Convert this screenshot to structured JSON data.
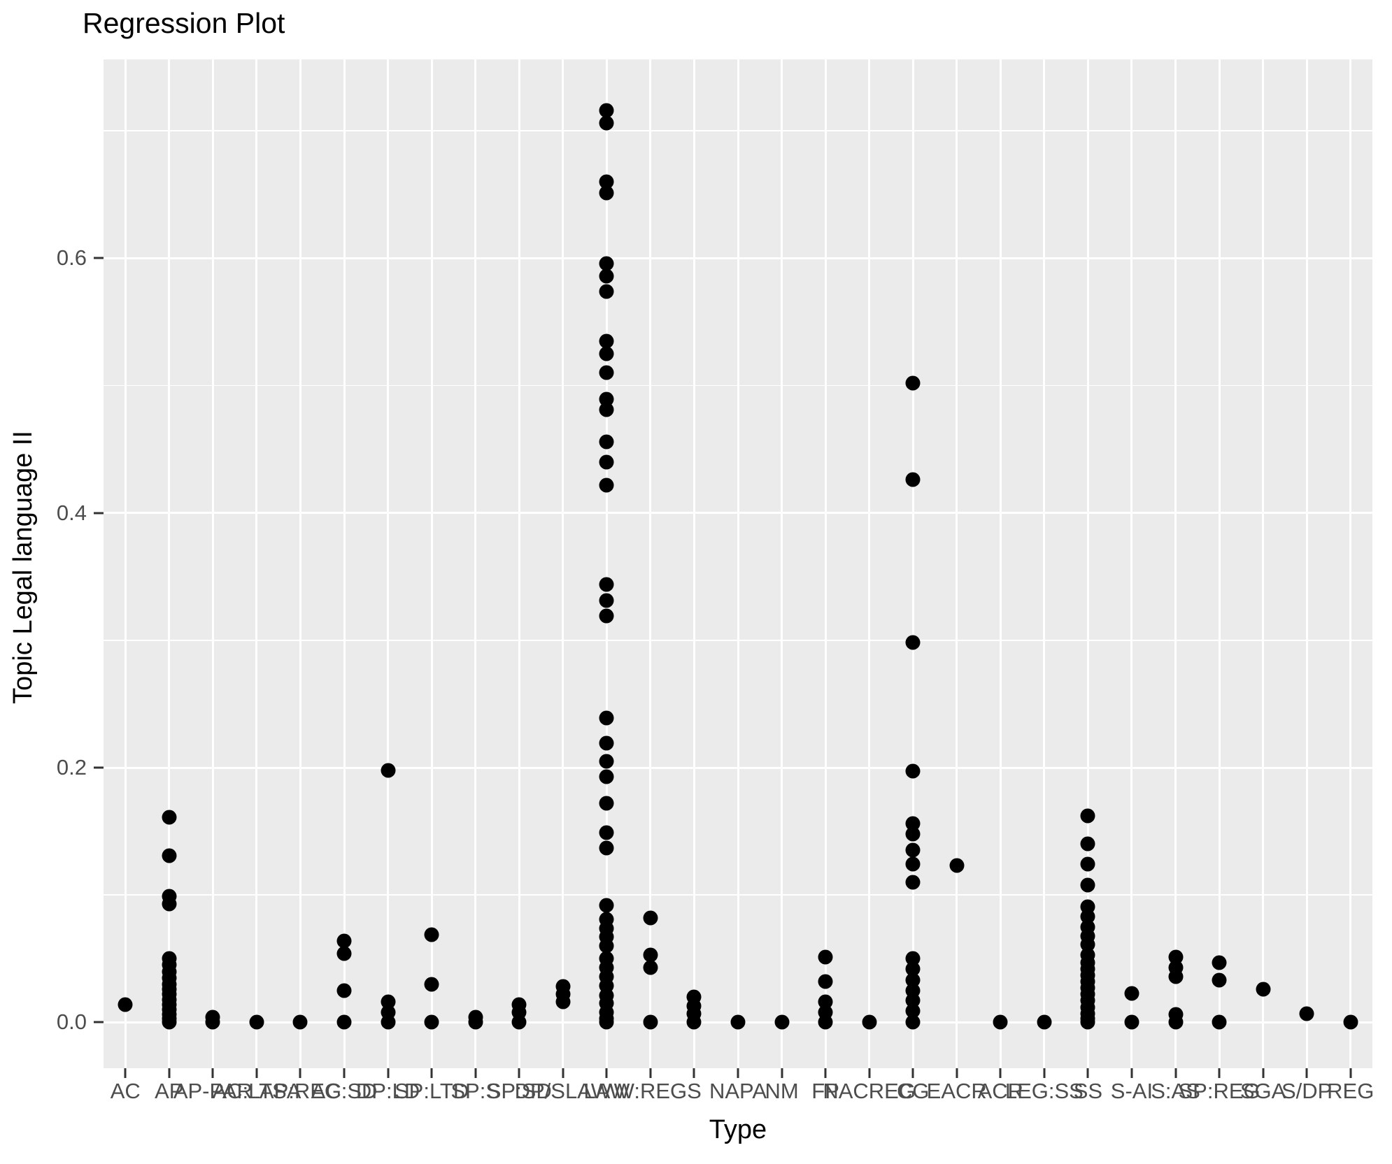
{
  "chart_data": {
    "type": "scatter",
    "title": "Regression Plot",
    "xlabel": "Type",
    "ylabel": "Topic Legal language II",
    "legend": "none",
    "grid": "on",
    "y_axis": {
      "major_ticks": [
        0.0,
        0.2,
        0.4,
        0.6
      ],
      "major_tick_labels": [
        "0.0",
        "0.2",
        "0.4",
        "0.6"
      ],
      "minor_gridlines": [
        0.1,
        0.3,
        0.5,
        0.7
      ],
      "ylim": [
        -0.036,
        0.756
      ]
    },
    "colors": {
      "panel_background": "#EBEBEB",
      "gridline": "#FFFFFF",
      "point": "#000000",
      "axis_text": "#4D4D4D",
      "tick_mark": "#333333",
      "title_text": "#000000"
    },
    "categories": [
      "AC",
      "AP",
      "AP-PAR",
      "AC:LTSA",
      "AP:REG",
      "AC:SD",
      "DP:LD",
      "SP:LTD",
      "SP:S",
      "SP:SD",
      "DP/SLAW",
      "LAW",
      "W:REG",
      "S",
      "NAPA",
      "NM",
      "FP",
      "NACREG",
      "CG",
      "EACR",
      "ACR",
      "LEG:SS",
      "SS",
      "S-AI",
      "S:AS",
      "SP:REG",
      "SGA",
      "S/DP",
      "REG"
    ],
    "series": [
      {
        "category": "AC",
        "values": [
          0.014
        ]
      },
      {
        "category": "AP",
        "values": [
          0.161,
          0.131,
          0.099,
          0.093,
          0.05,
          0.045,
          0.04,
          0.035,
          0.03,
          0.026,
          0.022,
          0.018,
          0.014,
          0.01,
          0.006,
          0.003,
          0.0
        ]
      },
      {
        "category": "AP-PAR",
        "values": [
          0.004,
          0.0
        ]
      },
      {
        "category": "AC:LTSA",
        "values": [
          0.0
        ]
      },
      {
        "category": "AP:REG",
        "values": [
          0.0
        ]
      },
      {
        "category": "AC:SD",
        "values": [
          0.064,
          0.054,
          0.025,
          0.0
        ]
      },
      {
        "category": "DP:LD",
        "values": [
          0.198,
          0.016,
          0.008,
          0.0
        ]
      },
      {
        "category": "SP:LTD",
        "values": [
          0.069,
          0.03,
          0.0
        ]
      },
      {
        "category": "SP:S",
        "values": [
          0.004,
          0.0
        ]
      },
      {
        "category": "SP:SD",
        "values": [
          0.014,
          0.008,
          0.0
        ]
      },
      {
        "category": "DP/SLAW",
        "values": [
          0.028,
          0.022,
          0.016
        ]
      },
      {
        "category": "LAW",
        "values": [
          0.716,
          0.706,
          0.66,
          0.651,
          0.596,
          0.586,
          0.574,
          0.535,
          0.525,
          0.51,
          0.489,
          0.481,
          0.456,
          0.44,
          0.422,
          0.344,
          0.331,
          0.319,
          0.239,
          0.219,
          0.205,
          0.193,
          0.172,
          0.149,
          0.137,
          0.092,
          0.081,
          0.074,
          0.067,
          0.06,
          0.05,
          0.043,
          0.036,
          0.029,
          0.021,
          0.015,
          0.008,
          0.003,
          0.0
        ]
      },
      {
        "category": "W:REG",
        "values": [
          0.082,
          0.053,
          0.043,
          0.0
        ]
      },
      {
        "category": "S",
        "values": [
          0.02,
          0.013,
          0.007,
          0.0
        ]
      },
      {
        "category": "NAPA",
        "values": [
          0.0
        ]
      },
      {
        "category": "NM",
        "values": [
          0.0
        ]
      },
      {
        "category": "FP",
        "values": [
          0.051,
          0.032,
          0.016,
          0.008,
          0.0
        ]
      },
      {
        "category": "NACREG",
        "values": [
          0.0
        ]
      },
      {
        "category": "CG",
        "values": [
          0.502,
          0.426,
          0.298,
          0.197,
          0.156,
          0.148,
          0.135,
          0.124,
          0.11,
          0.05,
          0.042,
          0.033,
          0.025,
          0.017,
          0.009,
          0.0
        ]
      },
      {
        "category": "EACR",
        "values": [
          0.123
        ]
      },
      {
        "category": "ACR",
        "values": [
          0.0
        ]
      },
      {
        "category": "LEG:SS",
        "values": [
          0.0
        ]
      },
      {
        "category": "SS",
        "values": [
          0.162,
          0.14,
          0.124,
          0.108,
          0.091,
          0.083,
          0.075,
          0.068,
          0.061,
          0.053,
          0.047,
          0.042,
          0.037,
          0.032,
          0.027,
          0.022,
          0.017,
          0.012,
          0.007,
          0.003,
          0.0
        ]
      },
      {
        "category": "S-AI",
        "values": [
          0.023,
          0.0
        ]
      },
      {
        "category": "S:AS",
        "values": [
          0.051,
          0.043,
          0.036,
          0.006,
          0.0
        ]
      },
      {
        "category": "SP:REG",
        "values": [
          0.047,
          0.033,
          0.0
        ]
      },
      {
        "category": "SGA",
        "values": [
          0.026
        ]
      },
      {
        "category": "S/DP",
        "values": [
          0.007
        ]
      },
      {
        "category": "REG",
        "values": [
          0.0
        ]
      }
    ]
  }
}
